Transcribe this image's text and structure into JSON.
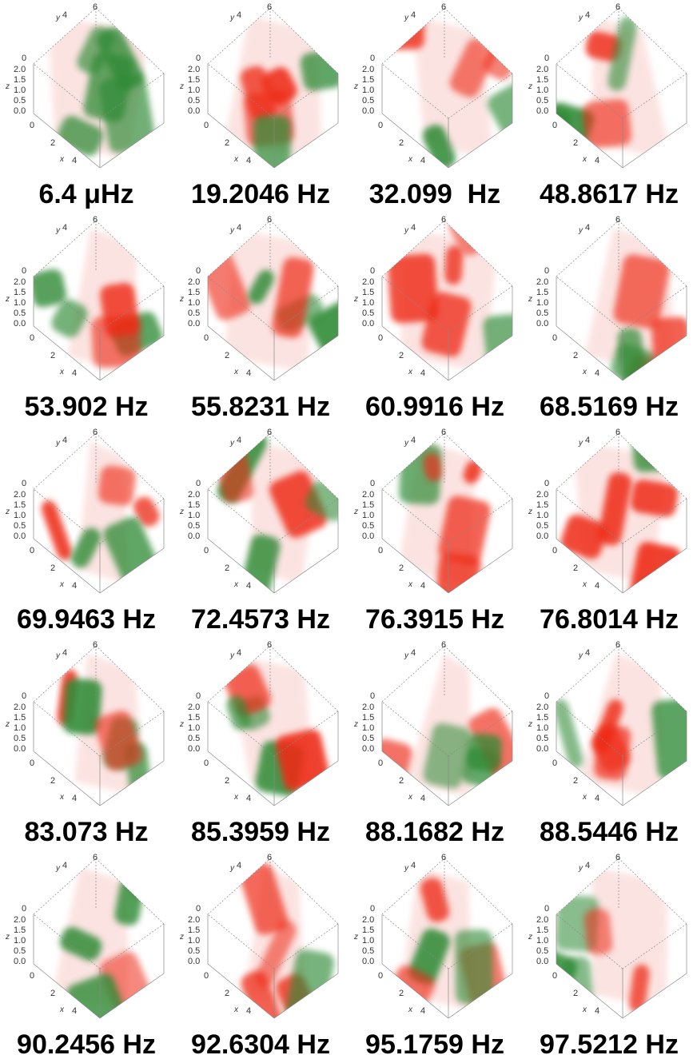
{
  "panels": [
    {
      "label": "6.4 μHz"
    },
    {
      "label": "19.2046 Hz"
    },
    {
      "label": "32.099  Hz"
    },
    {
      "label": "48.8617 Hz"
    },
    {
      "label": "53.902 Hz"
    },
    {
      "label": "55.8231 Hz"
    },
    {
      "label": "60.9916 Hz"
    },
    {
      "label": "68.5169 Hz"
    },
    {
      "label": "69.9463 Hz"
    },
    {
      "label": "72.4573 Hz"
    },
    {
      "label": "76.3915 Hz"
    },
    {
      "label": "76.8014 Hz"
    },
    {
      "label": "83.073 Hz"
    },
    {
      "label": "85.3959 Hz"
    },
    {
      "label": "88.1682 Hz"
    },
    {
      "label": "88.5446 Hz"
    },
    {
      "label": "90.2456 Hz"
    },
    {
      "label": "92.6304 Hz"
    },
    {
      "label": "95.1759 Hz"
    },
    {
      "label": "97.5212 Hz"
    }
  ],
  "axes": {
    "y_ticks": [
      "0",
      "4",
      "6"
    ],
    "y_name": "y",
    "z_ticks": [
      "2.0",
      "1.5",
      "1.0",
      "0.5",
      "0.0"
    ],
    "z_name": "z",
    "x_ticks": [
      "0",
      "2",
      "4"
    ],
    "x_name": "x"
  }
}
